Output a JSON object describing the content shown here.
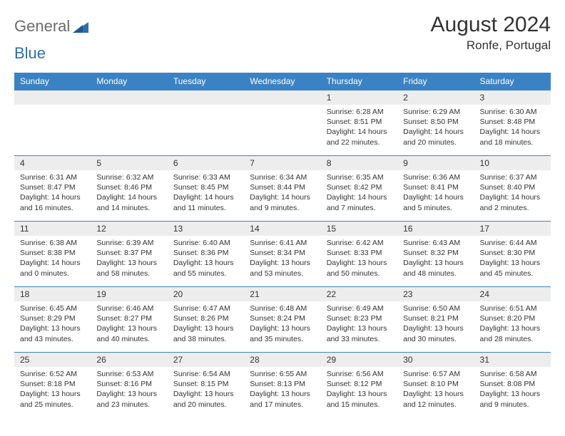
{
  "brand": {
    "part1": "General",
    "part2": "Blue"
  },
  "header": {
    "month_title": "August 2024",
    "location": "Ronfe, Portugal"
  },
  "colors": {
    "header_bg": "#3b82c4",
    "header_text": "#ffffff",
    "daynum_bg": "#ededed",
    "cell_border": "#3b82c4",
    "text": "#333333",
    "logo_gray": "#6b6b6b",
    "logo_blue": "#2f6fa8"
  },
  "day_headers": [
    "Sunday",
    "Monday",
    "Tuesday",
    "Wednesday",
    "Thursday",
    "Friday",
    "Saturday"
  ],
  "weeks": [
    [
      {
        "n": "",
        "sunrise": "",
        "sunset": "",
        "daylight": ""
      },
      {
        "n": "",
        "sunrise": "",
        "sunset": "",
        "daylight": ""
      },
      {
        "n": "",
        "sunrise": "",
        "sunset": "",
        "daylight": ""
      },
      {
        "n": "",
        "sunrise": "",
        "sunset": "",
        "daylight": ""
      },
      {
        "n": "1",
        "sunrise": "6:28 AM",
        "sunset": "8:51 PM",
        "daylight": "14 hours and 22 minutes."
      },
      {
        "n": "2",
        "sunrise": "6:29 AM",
        "sunset": "8:50 PM",
        "daylight": "14 hours and 20 minutes."
      },
      {
        "n": "3",
        "sunrise": "6:30 AM",
        "sunset": "8:48 PM",
        "daylight": "14 hours and 18 minutes."
      }
    ],
    [
      {
        "n": "4",
        "sunrise": "6:31 AM",
        "sunset": "8:47 PM",
        "daylight": "14 hours and 16 minutes."
      },
      {
        "n": "5",
        "sunrise": "6:32 AM",
        "sunset": "8:46 PM",
        "daylight": "14 hours and 14 minutes."
      },
      {
        "n": "6",
        "sunrise": "6:33 AM",
        "sunset": "8:45 PM",
        "daylight": "14 hours and 11 minutes."
      },
      {
        "n": "7",
        "sunrise": "6:34 AM",
        "sunset": "8:44 PM",
        "daylight": "14 hours and 9 minutes."
      },
      {
        "n": "8",
        "sunrise": "6:35 AM",
        "sunset": "8:42 PM",
        "daylight": "14 hours and 7 minutes."
      },
      {
        "n": "9",
        "sunrise": "6:36 AM",
        "sunset": "8:41 PM",
        "daylight": "14 hours and 5 minutes."
      },
      {
        "n": "10",
        "sunrise": "6:37 AM",
        "sunset": "8:40 PM",
        "daylight": "14 hours and 2 minutes."
      }
    ],
    [
      {
        "n": "11",
        "sunrise": "6:38 AM",
        "sunset": "8:38 PM",
        "daylight": "14 hours and 0 minutes."
      },
      {
        "n": "12",
        "sunrise": "6:39 AM",
        "sunset": "8:37 PM",
        "daylight": "13 hours and 58 minutes."
      },
      {
        "n": "13",
        "sunrise": "6:40 AM",
        "sunset": "8:36 PM",
        "daylight": "13 hours and 55 minutes."
      },
      {
        "n": "14",
        "sunrise": "6:41 AM",
        "sunset": "8:34 PM",
        "daylight": "13 hours and 53 minutes."
      },
      {
        "n": "15",
        "sunrise": "6:42 AM",
        "sunset": "8:33 PM",
        "daylight": "13 hours and 50 minutes."
      },
      {
        "n": "16",
        "sunrise": "6:43 AM",
        "sunset": "8:32 PM",
        "daylight": "13 hours and 48 minutes."
      },
      {
        "n": "17",
        "sunrise": "6:44 AM",
        "sunset": "8:30 PM",
        "daylight": "13 hours and 45 minutes."
      }
    ],
    [
      {
        "n": "18",
        "sunrise": "6:45 AM",
        "sunset": "8:29 PM",
        "daylight": "13 hours and 43 minutes."
      },
      {
        "n": "19",
        "sunrise": "6:46 AM",
        "sunset": "8:27 PM",
        "daylight": "13 hours and 40 minutes."
      },
      {
        "n": "20",
        "sunrise": "6:47 AM",
        "sunset": "8:26 PM",
        "daylight": "13 hours and 38 minutes."
      },
      {
        "n": "21",
        "sunrise": "6:48 AM",
        "sunset": "8:24 PM",
        "daylight": "13 hours and 35 minutes."
      },
      {
        "n": "22",
        "sunrise": "6:49 AM",
        "sunset": "8:23 PM",
        "daylight": "13 hours and 33 minutes."
      },
      {
        "n": "23",
        "sunrise": "6:50 AM",
        "sunset": "8:21 PM",
        "daylight": "13 hours and 30 minutes."
      },
      {
        "n": "24",
        "sunrise": "6:51 AM",
        "sunset": "8:20 PM",
        "daylight": "13 hours and 28 minutes."
      }
    ],
    [
      {
        "n": "25",
        "sunrise": "6:52 AM",
        "sunset": "8:18 PM",
        "daylight": "13 hours and 25 minutes."
      },
      {
        "n": "26",
        "sunrise": "6:53 AM",
        "sunset": "8:16 PM",
        "daylight": "13 hours and 23 minutes."
      },
      {
        "n": "27",
        "sunrise": "6:54 AM",
        "sunset": "8:15 PM",
        "daylight": "13 hours and 20 minutes."
      },
      {
        "n": "28",
        "sunrise": "6:55 AM",
        "sunset": "8:13 PM",
        "daylight": "13 hours and 17 minutes."
      },
      {
        "n": "29",
        "sunrise": "6:56 AM",
        "sunset": "8:12 PM",
        "daylight": "13 hours and 15 minutes."
      },
      {
        "n": "30",
        "sunrise": "6:57 AM",
        "sunset": "8:10 PM",
        "daylight": "13 hours and 12 minutes."
      },
      {
        "n": "31",
        "sunrise": "6:58 AM",
        "sunset": "8:08 PM",
        "daylight": "13 hours and 9 minutes."
      }
    ]
  ],
  "labels": {
    "sunrise_prefix": "Sunrise: ",
    "sunset_prefix": "Sunset: ",
    "daylight_prefix": "Daylight: "
  }
}
